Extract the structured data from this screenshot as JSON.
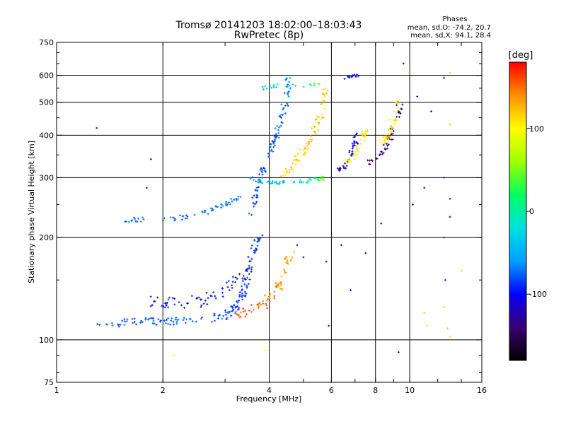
{
  "header": {
    "title": "Tromsø 20141203 18:02:00–18:03:43",
    "subtitle": "RwPretec (8p)"
  },
  "stats": {
    "heading": "Phases",
    "line_o": "mean, sd,O: -74.2, 20.7",
    "line_x": "mean, sd,X:  94.1, 28.4"
  },
  "colorbar": {
    "unit": "[deg]",
    "ticks": [
      {
        "value": 100,
        "label": "100"
      },
      {
        "value": 0,
        "label": "0"
      },
      {
        "value": -100,
        "label": "-100"
      }
    ],
    "range": [
      -180,
      180
    ],
    "colors": [
      "#000000",
      "#3a0070",
      "#0000ff",
      "#00a0ff",
      "#00e0e0",
      "#00ff60",
      "#a0ff00",
      "#ffff00",
      "#ff9000",
      "#ff0000"
    ]
  },
  "chart_data": {
    "type": "scatter",
    "title": "Tromsø 20141203 18:02:00–18:03:43",
    "subtitle": "RwPretec (8p)",
    "xlabel": "Frequency [MHz]",
    "ylabel": "Stationary phase Virtual Height [km]",
    "xscale": "log",
    "yscale": "log",
    "xlim": [
      1,
      16
    ],
    "ylim": [
      75,
      750
    ],
    "xticks": [
      {
        "value": 1,
        "label": "1"
      },
      {
        "value": 2,
        "label": "2"
      },
      {
        "value": 4,
        "label": "4"
      },
      {
        "value": 6,
        "label": "6"
      },
      {
        "value": 8,
        "label": "8"
      },
      {
        "value": 10,
        "label": "10"
      },
      {
        "value": 16,
        "label": "16"
      }
    ],
    "yticks": [
      {
        "value": 75,
        "label": "75"
      },
      {
        "value": 100,
        "label": "100"
      },
      {
        "value": 200,
        "label": "200"
      },
      {
        "value": 300,
        "label": "300"
      },
      {
        "value": 400,
        "label": "400"
      },
      {
        "value": 500,
        "label": "500"
      },
      {
        "value": 600,
        "label": "600"
      },
      {
        "value": 750,
        "label": "750"
      }
    ],
    "x_gridlines": [
      2,
      4,
      6,
      8,
      10
    ],
    "y_gridlines": [
      100,
      200,
      300,
      400,
      500,
      600
    ],
    "grid": true,
    "color_variable": "phase [deg]",
    "color_range": [
      -180,
      180
    ],
    "traces": [
      {
        "points": [
          [
            1.3,
            112,
            -75
          ],
          [
            1.5,
            111,
            -80
          ],
          [
            1.7,
            114,
            -85
          ],
          [
            2.0,
            113,
            -80
          ],
          [
            2.4,
            114,
            -78
          ],
          [
            2.8,
            116,
            -75
          ],
          [
            3.0,
            118,
            -80
          ],
          [
            3.2,
            123,
            -85
          ],
          [
            3.35,
            135,
            -88
          ],
          [
            3.45,
            150,
            -90
          ],
          [
            3.55,
            170,
            -92
          ],
          [
            3.65,
            190,
            -88
          ],
          [
            3.75,
            200,
            -85
          ]
        ],
        "spread": 0.025,
        "count": 170
      },
      {
        "points": [
          [
            1.9,
            130,
            -100
          ],
          [
            2.2,
            128,
            -95
          ],
          [
            2.6,
            130,
            -98
          ],
          [
            3.0,
            140,
            -100
          ],
          [
            3.3,
            155,
            -98
          ]
        ],
        "spread": 0.04,
        "count": 60
      },
      {
        "points": [
          [
            3.2,
            118,
            150
          ],
          [
            3.5,
            122,
            155
          ],
          [
            3.9,
            128,
            150
          ],
          [
            4.2,
            140,
            140
          ],
          [
            4.45,
            160,
            135
          ],
          [
            4.6,
            180,
            130
          ]
        ],
        "spread": 0.03,
        "count": 70
      },
      {
        "points": [
          [
            1.5,
            225,
            -70
          ],
          [
            1.8,
            226,
            -75
          ],
          [
            2.2,
            228,
            -72
          ],
          [
            2.6,
            235,
            -70
          ],
          [
            3.0,
            250,
            -72
          ],
          [
            3.3,
            262,
            -75
          ]
        ],
        "spread": 0.015,
        "count": 65
      },
      {
        "points": [
          [
            3.5,
            300,
            -60
          ],
          [
            3.8,
            292,
            -50
          ],
          [
            4.2,
            290,
            -45
          ],
          [
            4.8,
            292,
            -30
          ],
          [
            5.4,
            295,
            10
          ],
          [
            5.8,
            300,
            60
          ]
        ],
        "spread": 0.012,
        "count": 60
      },
      {
        "points": [
          [
            3.55,
            230,
            -90
          ],
          [
            3.7,
            280,
            -85
          ],
          [
            3.9,
            330,
            -80
          ],
          [
            4.1,
            380,
            -78
          ],
          [
            4.3,
            430,
            -75
          ],
          [
            4.45,
            500,
            -72
          ],
          [
            4.55,
            600,
            -70
          ]
        ],
        "spread": 0.02,
        "count": 90
      },
      {
        "points": [
          [
            4.4,
            300,
            110
          ],
          [
            4.7,
            330,
            115
          ],
          [
            5.0,
            360,
            120
          ],
          [
            5.3,
            400,
            120
          ],
          [
            5.6,
            460,
            118
          ],
          [
            5.8,
            560,
            115
          ]
        ],
        "spread": 0.02,
        "count": 75
      },
      {
        "points": [
          [
            6.2,
            310,
            -120
          ],
          [
            6.6,
            330,
            -115
          ],
          [
            6.9,
            360,
            -110
          ],
          [
            7.1,
            400,
            -105
          ]
        ],
        "spread": 0.02,
        "count": 40
      },
      {
        "points": [
          [
            6.6,
            330,
            100
          ],
          [
            7.0,
            350,
            105
          ],
          [
            7.3,
            380,
            110
          ],
          [
            7.5,
            420,
            110
          ]
        ],
        "spread": 0.02,
        "count": 35
      },
      {
        "points": [
          [
            7.7,
            330,
            -140
          ],
          [
            8.2,
            350,
            -135
          ],
          [
            8.7,
            380,
            -130
          ],
          [
            9.2,
            440,
            -128
          ],
          [
            9.4,
            500,
            -125
          ]
        ],
        "spread": 0.02,
        "count": 45
      },
      {
        "points": [
          [
            8.3,
            380,
            110
          ],
          [
            8.7,
            400,
            115
          ],
          [
            9.0,
            450,
            115
          ],
          [
            9.3,
            500,
            110
          ]
        ],
        "spread": 0.02,
        "count": 35
      },
      {
        "points": [
          [
            3.8,
            550,
            -40
          ],
          [
            4.2,
            560,
            -30
          ],
          [
            5.0,
            560,
            -20
          ],
          [
            5.6,
            565,
            60
          ]
        ],
        "spread": 0.01,
        "count": 25
      },
      {
        "points": [
          [
            6.5,
            590,
            -100
          ],
          [
            7.2,
            600,
            -95
          ]
        ],
        "spread": 0.01,
        "count": 12
      }
    ],
    "scattered_points": [
      [
        1.3,
        420,
        -130
      ],
      [
        1.85,
        340,
        -110
      ],
      [
        1.8,
        280,
        -120
      ],
      [
        2.15,
        90,
        100
      ],
      [
        3.9,
        93,
        100
      ],
      [
        4.8,
        190,
        -100
      ],
      [
        5.0,
        175,
        -100
      ],
      [
        5.8,
        170,
        -110
      ],
      [
        6.4,
        190,
        -120
      ],
      [
        7.5,
        180,
        -115
      ],
      [
        9.3,
        92,
        -110
      ],
      [
        10.0,
        610,
        150
      ],
      [
        10.5,
        520,
        -130
      ],
      [
        11.0,
        280,
        -120
      ],
      [
        11.5,
        470,
        -120
      ],
      [
        12.5,
        590,
        -140
      ],
      [
        12.5,
        300,
        -130
      ],
      [
        12.5,
        200,
        -120
      ],
      [
        12.6,
        150,
        -130
      ],
      [
        12.5,
        125,
        120
      ],
      [
        13.0,
        610,
        120
      ],
      [
        13.0,
        430,
        120
      ],
      [
        13.0,
        260,
        -110
      ],
      [
        13.0,
        230,
        -120
      ],
      [
        11.0,
        120,
        120
      ],
      [
        12.8,
        108,
        120
      ],
      [
        13.0,
        102,
        110
      ],
      [
        14.0,
        160,
        120
      ],
      [
        10.0,
        300,
        -120
      ],
      [
        11.2,
        110,
        110
      ],
      [
        5.9,
        110,
        -100
      ],
      [
        6.8,
        140,
        -110
      ],
      [
        8.3,
        220,
        -110
      ],
      [
        9.6,
        650,
        -140
      ],
      [
        10.2,
        250,
        -130
      ]
    ]
  }
}
